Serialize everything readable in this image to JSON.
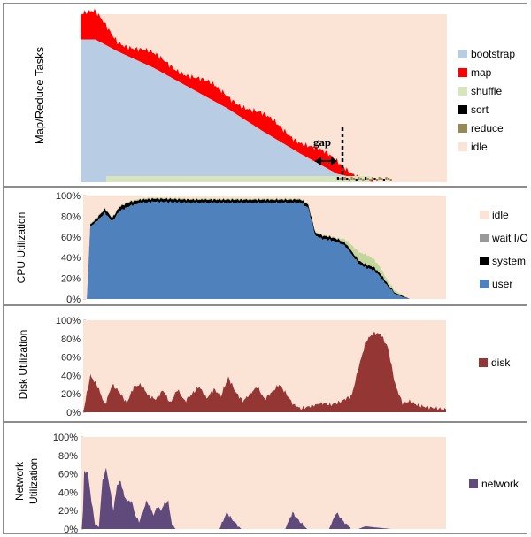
{
  "colors": {
    "idle": "#fbe4d5",
    "bootstrap": "#b8cce4",
    "map": "#ff0000",
    "shuffle": "#d7e4bd",
    "sort": "#000000",
    "reduce": "#948a54",
    "wait_io": "#c3d69b",
    "system": "#000000",
    "user": "#4f81bd",
    "disk": "#943634",
    "network": "#604a7b"
  },
  "chart_data": [
    {
      "type": "area",
      "ylabel": "Map/Reduce Tasks",
      "legend_position": "right",
      "series": [
        {
          "name": "bootstrap"
        },
        {
          "name": "map"
        },
        {
          "name": "shuffle"
        },
        {
          "name": "sort"
        },
        {
          "name": "reduce"
        },
        {
          "name": "idle"
        }
      ],
      "annotation": "gap",
      "t": [
        0,
        0.04,
        0.1,
        0.2,
        0.3,
        0.4,
        0.5,
        0.6,
        0.7,
        0.8,
        1.0
      ],
      "bootstrap_share": [
        0.85,
        0.85,
        0.78,
        0.68,
        0.56,
        0.44,
        0.3,
        0.17,
        0.05,
        0,
        0
      ],
      "map_share": [
        0.15,
        0.15,
        0.07,
        0.07,
        0.08,
        0.08,
        0.09,
        0.08,
        0.07,
        0,
        0
      ]
    },
    {
      "type": "area",
      "ylabel": "CPU Utilization",
      "yticks": [
        "0%",
        "20%",
        "40%",
        "60%",
        "80%",
        "100%"
      ],
      "ylim": [
        0,
        100
      ],
      "legend_position": "right",
      "series": [
        {
          "name": "idle"
        },
        {
          "name": "wait I/O"
        },
        {
          "name": "system"
        },
        {
          "name": "user"
        }
      ],
      "t": [
        0,
        0.01,
        0.02,
        0.04,
        0.06,
        0.08,
        0.1,
        0.13,
        0.16,
        0.2,
        0.3,
        0.4,
        0.5,
        0.6,
        0.62,
        0.64,
        0.66,
        0.68,
        0.7,
        0.72,
        0.74,
        0.76,
        0.78,
        0.8,
        0.82,
        0.84,
        0.86,
        0.88,
        0.9,
        0.92,
        0.95,
        1.0
      ],
      "user": [
        0,
        0,
        70,
        76,
        83,
        75,
        85,
        90,
        93,
        94,
        93,
        93,
        93,
        93,
        88,
        61,
        58,
        57,
        55,
        52,
        43,
        34,
        30,
        28,
        21,
        12,
        5,
        2,
        0,
        0,
        0,
        0
      ],
      "system": [
        0,
        0,
        2,
        3,
        4,
        3,
        4,
        4,
        3,
        3,
        3,
        3,
        3,
        3,
        3,
        3,
        3,
        3,
        3,
        3,
        3,
        3,
        3,
        3,
        3,
        2,
        1,
        1,
        0,
        0,
        0,
        0
      ],
      "wait_io": [
        0,
        0,
        1,
        1,
        1,
        1,
        1,
        1,
        1,
        1,
        1,
        1,
        1,
        1,
        1,
        1,
        1,
        1,
        1,
        3,
        6,
        8,
        10,
        8,
        6,
        3,
        2,
        1,
        0,
        0,
        0,
        0
      ]
    },
    {
      "type": "area",
      "ylabel": "Disk Utilization",
      "yticks": [
        "0%",
        "20%",
        "40%",
        "60%",
        "80%",
        "100%"
      ],
      "ylim": [
        0,
        100
      ],
      "legend_position": "right",
      "series": [
        {
          "name": "disk"
        }
      ],
      "t": [
        0,
        0.02,
        0.04,
        0.06,
        0.08,
        0.1,
        0.12,
        0.14,
        0.16,
        0.18,
        0.2,
        0.22,
        0.24,
        0.26,
        0.28,
        0.3,
        0.32,
        0.34,
        0.36,
        0.38,
        0.4,
        0.42,
        0.44,
        0.46,
        0.48,
        0.5,
        0.52,
        0.54,
        0.56,
        0.58,
        0.6,
        0.62,
        0.64,
        0.66,
        0.68,
        0.7,
        0.72,
        0.74,
        0.76,
        0.78,
        0.8,
        0.82,
        0.84,
        0.86,
        0.88,
        0.9,
        0.92,
        0.94,
        0.96,
        0.98,
        1.0
      ],
      "values": [
        0,
        40,
        28,
        8,
        30,
        22,
        10,
        28,
        30,
        18,
        14,
        24,
        10,
        25,
        12,
        20,
        28,
        15,
        25,
        18,
        38,
        22,
        12,
        20,
        28,
        14,
        22,
        30,
        20,
        8,
        4,
        6,
        8,
        10,
        8,
        10,
        14,
        18,
        50,
        78,
        86,
        85,
        70,
        30,
        10,
        12,
        8,
        6,
        5,
        4,
        3
      ]
    },
    {
      "type": "area",
      "ylabel": "Network Utilization",
      "yticks": [
        "0%",
        "20%",
        "40%",
        "60%",
        "80%",
        "100%"
      ],
      "ylim": [
        0,
        100
      ],
      "legend_position": "right",
      "series": [
        {
          "name": "network"
        }
      ],
      "t": [
        0,
        0.005,
        0.01,
        0.02,
        0.03,
        0.04,
        0.05,
        0.06,
        0.07,
        0.08,
        0.09,
        0.1,
        0.11,
        0.12,
        0.13,
        0.14,
        0.15,
        0.16,
        0.17,
        0.18,
        0.19,
        0.2,
        0.21,
        0.22,
        0.23,
        0.24,
        0.25,
        0.26,
        0.27,
        0.28,
        0.3,
        0.32,
        0.34,
        0.36,
        0.38,
        0.4,
        0.42,
        0.44,
        0.46,
        0.48,
        0.5,
        0.52,
        0.54,
        0.56,
        0.58,
        0.6,
        0.62,
        0.64,
        0.66,
        0.68,
        0.7,
        0.72,
        0.74,
        0.76,
        0.78,
        0.8,
        0.85,
        0.9,
        1.0
      ],
      "values": [
        0,
        0,
        62,
        62,
        30,
        5,
        2,
        52,
        66,
        45,
        20,
        48,
        52,
        35,
        30,
        30,
        15,
        8,
        18,
        30,
        25,
        15,
        25,
        20,
        28,
        30,
        5,
        0,
        0,
        0,
        0,
        0,
        0,
        0,
        0,
        18,
        8,
        0,
        0,
        0,
        0,
        0,
        0,
        0,
        18,
        8,
        0,
        0,
        0,
        0,
        18,
        8,
        0,
        0,
        3,
        2,
        0,
        0,
        0
      ]
    }
  ]
}
